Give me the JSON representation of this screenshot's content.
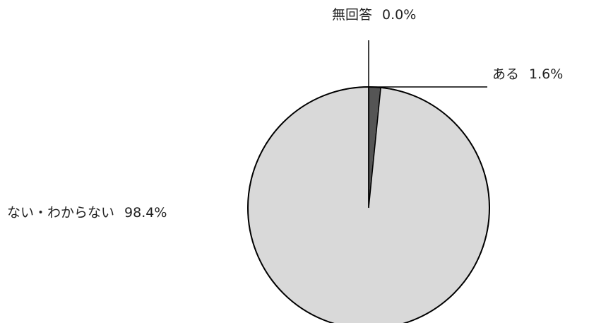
{
  "chart_data": {
    "type": "pie",
    "title": "",
    "slices": [
      {
        "label": "ある",
        "value": 1.6,
        "display": "1.6%",
        "color": "#555555"
      },
      {
        "label": "ない・わからない",
        "value": 98.4,
        "display": "98.4%",
        "color": "#d9d9d9"
      },
      {
        "label": "無回答",
        "value": 0.0,
        "display": "0.0%",
        "color": "#ffffff"
      }
    ],
    "start_angle": "12 o'clock",
    "direction": "clockwise",
    "legend": "none",
    "outline_color": "#000000"
  }
}
